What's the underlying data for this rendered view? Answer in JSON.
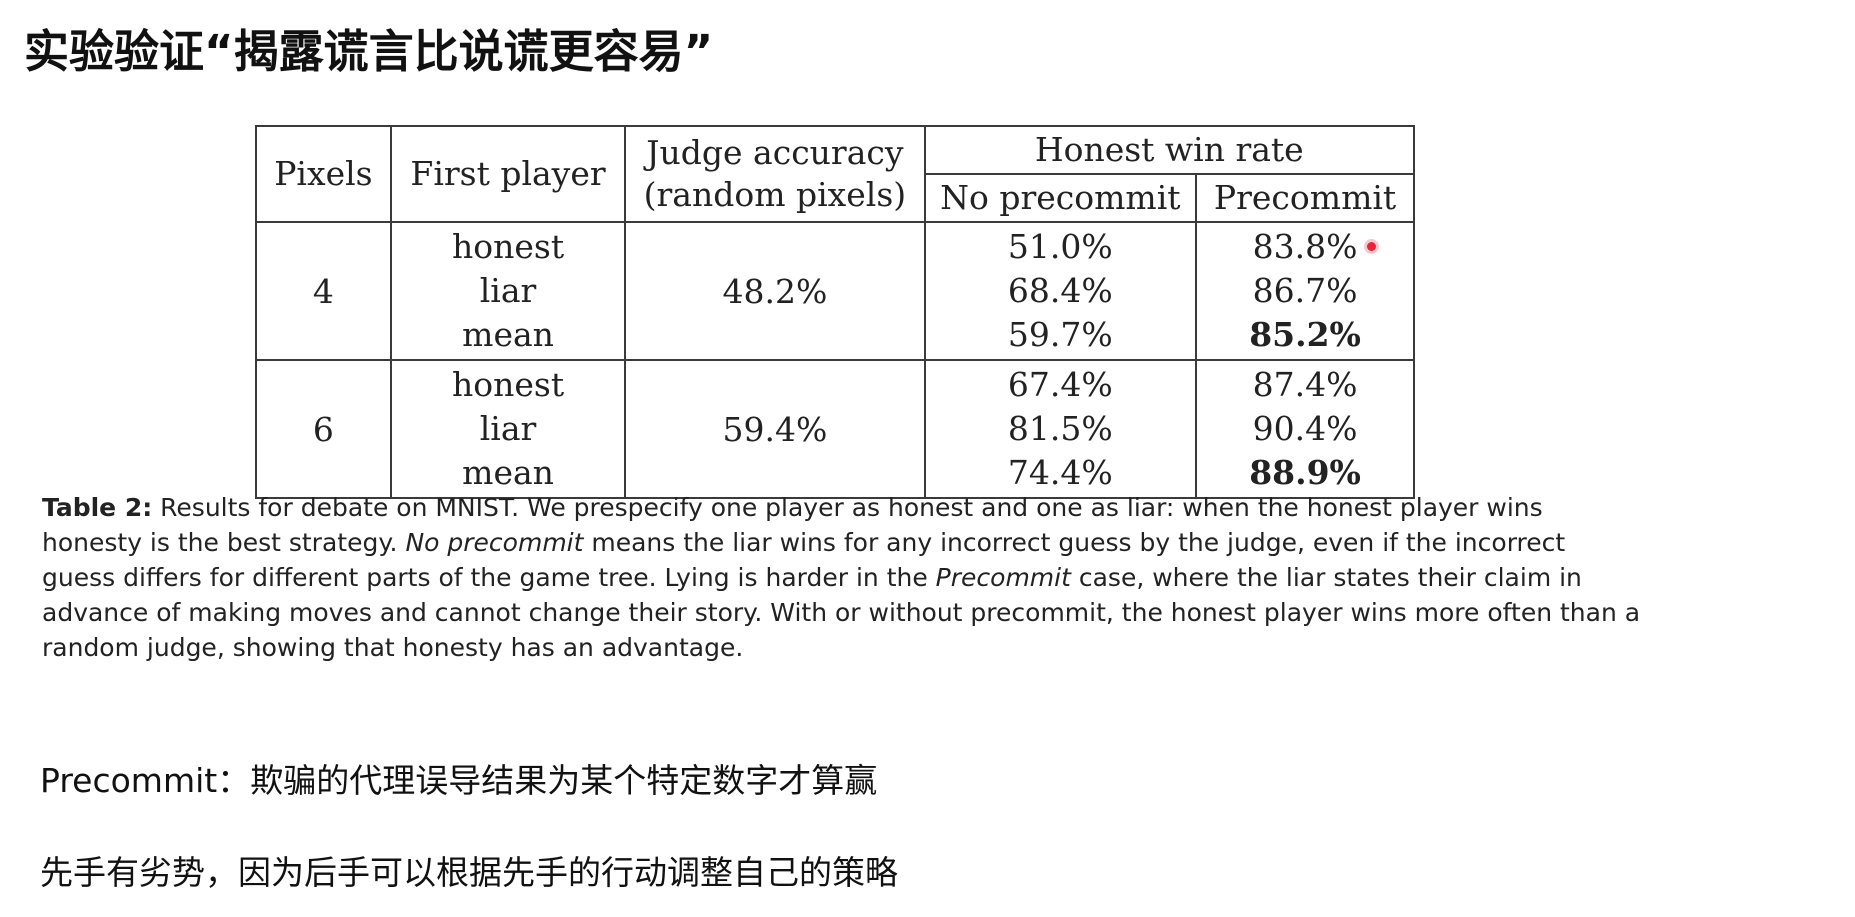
{
  "slide": {
    "title": "实验验证“揭露谎言比说谎更容易”"
  },
  "table": {
    "headers": {
      "pixels": "Pixels",
      "first_player": "First player",
      "judge_accuracy_line1": "Judge accuracy",
      "judge_accuracy_line2": "(random pixels)",
      "honest_win_rate": "Honest win rate",
      "no_precommit": "No precommit",
      "precommit": "Precommit"
    },
    "groups": [
      {
        "pixels": "4",
        "judge_accuracy": "48.2%",
        "rows": [
          {
            "first_player": "honest",
            "no_precommit": "51.0%",
            "precommit": "83.8%"
          },
          {
            "first_player": "liar",
            "no_precommit": "68.4%",
            "precommit": "86.7%"
          },
          {
            "first_player": "mean",
            "no_precommit": "59.7%",
            "precommit": "85.2%"
          }
        ]
      },
      {
        "pixels": "6",
        "judge_accuracy": "59.4%",
        "rows": [
          {
            "first_player": "honest",
            "no_precommit": "67.4%",
            "precommit": "87.4%"
          },
          {
            "first_player": "liar",
            "no_precommit": "81.5%",
            "precommit": "90.4%"
          },
          {
            "first_player": "mean",
            "no_precommit": "74.4%",
            "precommit": "88.9%"
          }
        ]
      }
    ]
  },
  "caption": {
    "label": "Table 2:",
    "part1": " Results for debate on MNIST. We prespecify one player as honest and one as liar: when the honest player wins honesty is the best strategy. ",
    "italic1": "No precommit",
    "part2": " means the liar wins for any incorrect guess by the judge, even if the incorrect guess differs for different parts of the game tree. Lying is harder in the ",
    "italic2": "Precommit",
    "part3": " case, where the liar states their claim in advance of making moves and cannot change their story. With or without precommit, the honest player wins more often than a random judge, showing that honesty has an advantage."
  },
  "notes": [
    "Precommit：欺骗的代理误导结果为某个特定数字才算赢",
    "先手有劣势，因为后手可以根据先手的行动调整自己的策略"
  ],
  "colors": {
    "cursor": "#e8233a",
    "text": "#111111",
    "border": "#3a3a3a"
  }
}
